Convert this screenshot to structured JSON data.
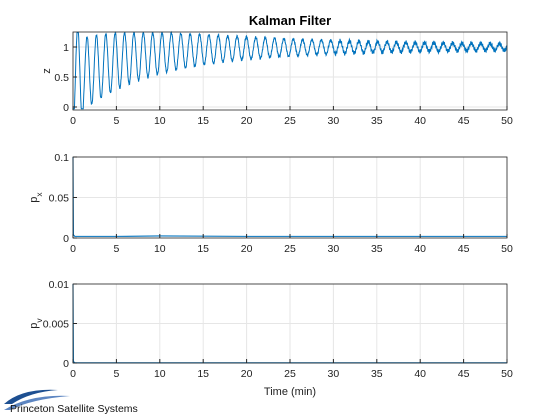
{
  "chart_data": [
    {
      "type": "line",
      "title": "Kalman Filter",
      "ylabel": "z",
      "xlabel": "",
      "xlim": [
        0,
        50
      ],
      "ylim": [
        -0.05,
        1.25
      ],
      "xticks": [
        "0",
        "5",
        "10",
        "15",
        "20",
        "25",
        "30",
        "35",
        "40",
        "45",
        "50"
      ],
      "yticks": [
        "0",
        "0.5",
        "1"
      ],
      "grid": true,
      "series": [
        {
          "description_values": "damped oscillation settling near 1",
          "x": [
            0,
            0.3,
            0.6,
            0.9,
            1.2,
            1.5,
            1.8,
            2.1,
            2.4,
            2.7,
            3.0,
            5,
            10,
            15,
            20,
            25,
            30,
            35,
            40,
            45,
            50
          ],
          "y": [
            0.0,
            1.0,
            1.2,
            0.8,
            0.1,
            0.0,
            0.6,
            1.1,
            1.22,
            0.9,
            0.2,
            0.4,
            0.6,
            0.7,
            0.8,
            0.85,
            0.9,
            0.95,
            0.97,
            1.0,
            1.0
          ],
          "color": "#0072BD"
        }
      ]
    },
    {
      "type": "line",
      "title": "",
      "ylabel": "p_x",
      "xlabel": "",
      "xlim": [
        0,
        50
      ],
      "ylim": [
        0,
        0.1
      ],
      "xticks": [
        "0",
        "5",
        "10",
        "15",
        "20",
        "25",
        "30",
        "35",
        "40",
        "45",
        "50"
      ],
      "yticks": [
        "0",
        "0.05",
        "0.1"
      ],
      "grid": true,
      "series": [
        {
          "x": [
            0,
            0.05,
            0.2,
            1,
            5,
            10,
            20,
            30,
            40,
            50
          ],
          "y": [
            0.1,
            0.004,
            0.002,
            0.002,
            0.002,
            0.0025,
            0.002,
            0.002,
            0.002,
            0.002
          ],
          "color": "#0072BD"
        }
      ]
    },
    {
      "type": "line",
      "title": "",
      "ylabel": "p_v",
      "xlabel": "Time (min)",
      "xlim": [
        0,
        50
      ],
      "ylim": [
        0,
        0.01
      ],
      "xticks": [
        "0",
        "5",
        "10",
        "15",
        "20",
        "25",
        "30",
        "35",
        "40",
        "45",
        "50"
      ],
      "yticks": [
        "0",
        "0.005",
        "0.01"
      ],
      "grid": true,
      "series": [
        {
          "x": [
            0,
            0.05,
            0.2,
            1,
            10,
            20,
            30,
            40,
            50
          ],
          "y": [
            0.01,
            0.0002,
            3e-05,
            2e-05,
            2e-05,
            2e-05,
            2e-05,
            2e-05,
            2e-05
          ],
          "color": "#0072BD"
        }
      ]
    }
  ],
  "footer": {
    "logo_text": "Princeton Satellite Systems"
  },
  "colors": {
    "line": "#0072BD",
    "grid": "#e6e6e6",
    "axis": "#262626"
  }
}
